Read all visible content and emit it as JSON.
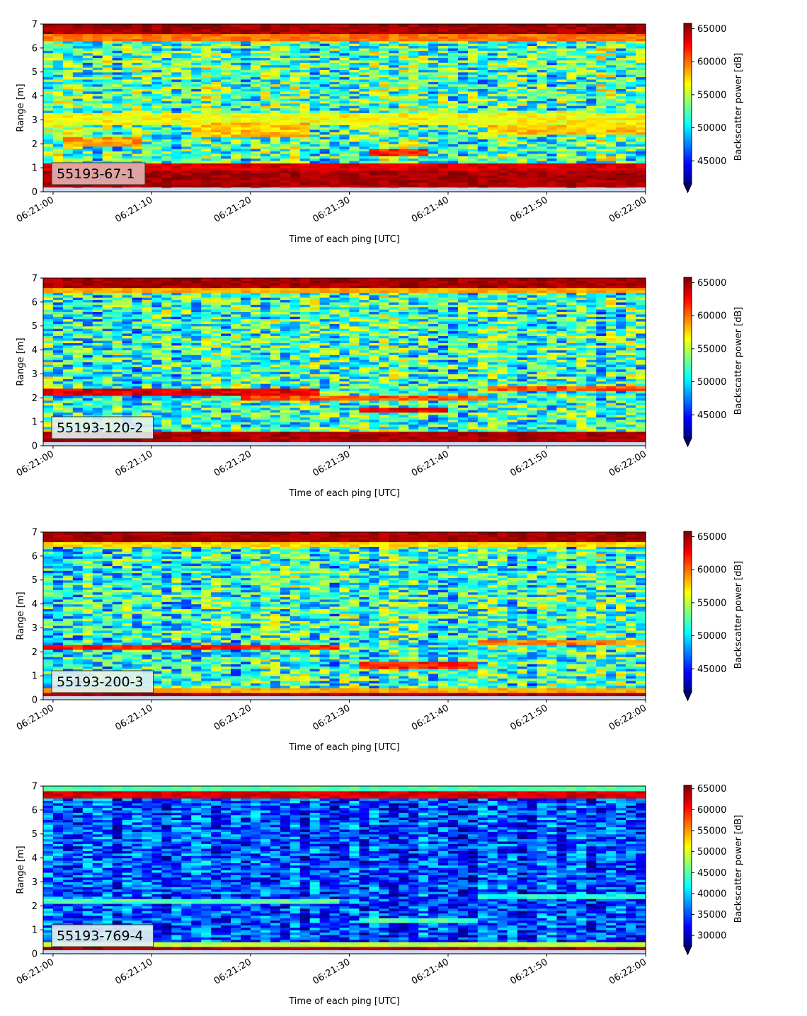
{
  "chart_data": [
    {
      "type": "heatmap",
      "label": "55193-67-1",
      "label_bg": "#e3b4b4",
      "xlabel": "Time of each ping [UTC]",
      "ylabel": "Range [m]",
      "x_ticks": [
        "06:21:00",
        "06:21:10",
        "06:21:20",
        "06:21:30",
        "06:21:40",
        "06:21:50",
        "06:22:00"
      ],
      "y_ticks": [
        "0",
        "1",
        "2",
        "3",
        "4",
        "5",
        "6",
        "7"
      ],
      "xlim": [
        0,
        61
      ],
      "ylim": [
        0,
        7
      ],
      "colorbar": {
        "label": "Backscatter power [dB]",
        "ticks": [
          "45000",
          "50000",
          "55000",
          "60000",
          "65000"
        ],
        "range": [
          41500,
          65800
        ],
        "tick_values": [
          45000,
          50000,
          55000,
          60000,
          65000
        ]
      },
      "bands": [
        {
          "y0": 6.6,
          "y1": 7.0,
          "value": 1.0
        },
        {
          "y0": 6.3,
          "y1": 6.6,
          "value": 0.8
        },
        {
          "y0": 0.9,
          "y1": 1.2,
          "value": 0.95
        },
        {
          "y0": 0.25,
          "y1": 0.9,
          "value": 1.0
        }
      ],
      "features": [
        {
          "x0": 0,
          "x1": 61,
          "y0": 2.8,
          "y1": 3.3,
          "value": 0.62
        },
        {
          "x0": 2,
          "x1": 10,
          "y0": 1.9,
          "y1": 2.3,
          "value": 0.72
        },
        {
          "x0": 15,
          "x1": 27,
          "y0": 2.3,
          "y1": 2.9,
          "value": 0.68
        },
        {
          "x0": 33,
          "x1": 39,
          "y0": 1.5,
          "y1": 1.8,
          "value": 0.85
        },
        {
          "x0": 45,
          "x1": 61,
          "y0": 2.4,
          "y1": 2.8,
          "value": 0.68
        }
      ],
      "background": 0.45,
      "noise": 0.22
    },
    {
      "type": "heatmap",
      "label": "55193-120-2",
      "label_bg": "#e4f1ef",
      "xlabel": "Time of each ping [UTC]",
      "ylabel": "Range [m]",
      "x_ticks": [
        "06:21:00",
        "06:21:10",
        "06:21:20",
        "06:21:30",
        "06:21:40",
        "06:21:50",
        "06:22:00"
      ],
      "y_ticks": [
        "0",
        "1",
        "2",
        "3",
        "4",
        "5",
        "6",
        "7"
      ],
      "xlim": [
        0,
        61
      ],
      "ylim": [
        0,
        7
      ],
      "colorbar": {
        "label": "Backscatter power [dB]",
        "ticks": [
          "45000",
          "50000",
          "55000",
          "60000",
          "65000"
        ],
        "range": [
          41500,
          65800
        ],
        "tick_values": [
          45000,
          50000,
          55000,
          60000,
          65000
        ]
      },
      "bands": [
        {
          "y0": 6.6,
          "y1": 7.0,
          "value": 1.0
        },
        {
          "y0": 6.4,
          "y1": 6.6,
          "value": 0.75
        },
        {
          "y0": 0.15,
          "y1": 0.55,
          "value": 1.0
        }
      ],
      "features": [
        {
          "x0": 0,
          "x1": 28,
          "y0": 2.15,
          "y1": 2.35,
          "value": 0.9
        },
        {
          "x0": 20,
          "x1": 45,
          "y0": 1.9,
          "y1": 2.1,
          "value": 0.8
        },
        {
          "x0": 32,
          "x1": 41,
          "y0": 1.45,
          "y1": 1.65,
          "value": 0.9
        },
        {
          "x0": 45,
          "x1": 61,
          "y0": 2.3,
          "y1": 2.5,
          "value": 0.8
        }
      ],
      "background": 0.42,
      "noise": 0.22
    },
    {
      "type": "heatmap",
      "label": "55193-200-3",
      "label_bg": "#e4f1ef",
      "xlabel": "Time of each ping [UTC]",
      "ylabel": "Range [m]",
      "x_ticks": [
        "06:21:00",
        "06:21:10",
        "06:21:20",
        "06:21:30",
        "06:21:40",
        "06:21:50",
        "06:22:00"
      ],
      "y_ticks": [
        "0",
        "1",
        "2",
        "3",
        "4",
        "5",
        "6",
        "7"
      ],
      "xlim": [
        0,
        61
      ],
      "ylim": [
        0,
        7
      ],
      "colorbar": {
        "label": "Backscatter power [dB]",
        "ticks": [
          "45000",
          "50000",
          "55000",
          "60000",
          "65000"
        ],
        "range": [
          41500,
          65800
        ],
        "tick_values": [
          45000,
          50000,
          55000,
          60000,
          65000
        ]
      },
      "bands": [
        {
          "y0": 6.6,
          "y1": 7.0,
          "value": 1.0
        },
        {
          "y0": 6.4,
          "y1": 6.6,
          "value": 0.7
        },
        {
          "y0": 0.15,
          "y1": 0.35,
          "value": 1.0
        },
        {
          "y0": 0.35,
          "y1": 0.5,
          "value": 0.75
        }
      ],
      "features": [
        {
          "x0": 0,
          "x1": 30,
          "y0": 2.1,
          "y1": 2.3,
          "value": 0.85
        },
        {
          "x0": 32,
          "x1": 44,
          "y0": 1.35,
          "y1": 1.55,
          "value": 0.85
        },
        {
          "x0": 44,
          "x1": 61,
          "y0": 2.3,
          "y1": 2.5,
          "value": 0.75
        }
      ],
      "background": 0.42,
      "noise": 0.22
    },
    {
      "type": "heatmap",
      "label": "55193-769-4",
      "label_bg": "#e4f1ef",
      "xlabel": "Time of each ping [UTC]",
      "ylabel": "Range [m]",
      "x_ticks": [
        "06:21:00",
        "06:21:10",
        "06:21:20",
        "06:21:30",
        "06:21:40",
        "06:21:50",
        "06:22:00"
      ],
      "y_ticks": [
        "0",
        "1",
        "2",
        "3",
        "4",
        "5",
        "6",
        "7"
      ],
      "xlim": [
        0,
        61
      ],
      "ylim": [
        0,
        7
      ],
      "colorbar": {
        "label": "Backscatter power [dB]",
        "ticks": [
          "30000",
          "35000",
          "40000",
          "45000",
          "50000",
          "55000",
          "60000",
          "65000"
        ],
        "range": [
          27500,
          65800
        ],
        "tick_values": [
          30000,
          35000,
          40000,
          45000,
          50000,
          55000,
          60000,
          65000
        ]
      },
      "bands": [
        {
          "y0": 6.85,
          "y1": 7.0,
          "value": 0.5
        },
        {
          "y0": 6.5,
          "y1": 6.85,
          "value": 0.95
        },
        {
          "y0": 0.15,
          "y1": 0.35,
          "value": 1.0
        },
        {
          "y0": 0.35,
          "y1": 0.45,
          "value": 0.6
        }
      ],
      "features": [
        {
          "x0": 0,
          "x1": 30,
          "y0": 2.1,
          "y1": 2.3,
          "value": 0.45
        },
        {
          "x0": 32,
          "x1": 44,
          "y0": 1.3,
          "y1": 1.5,
          "value": 0.45
        },
        {
          "x0": 44,
          "x1": 61,
          "y0": 2.3,
          "y1": 2.5,
          "value": 0.4
        }
      ],
      "background": 0.2,
      "noise": 0.16
    }
  ]
}
